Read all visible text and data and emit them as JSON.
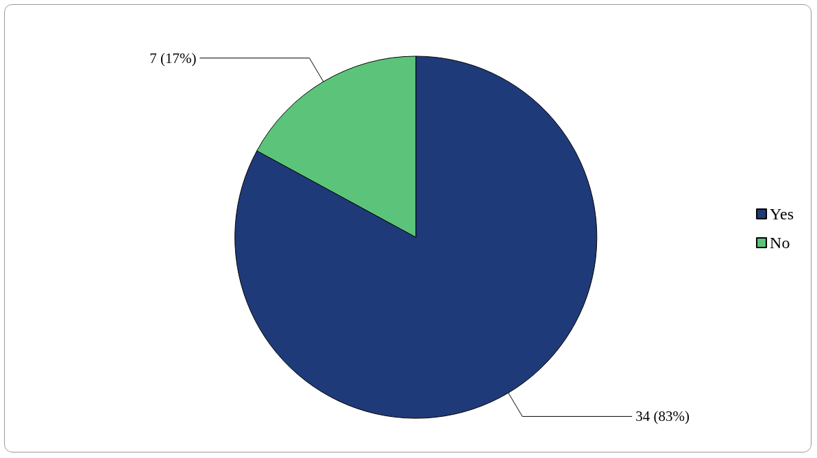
{
  "chart_data": {
    "type": "pie",
    "categories": [
      "Yes",
      "No"
    ],
    "values": [
      34,
      7
    ],
    "colors": [
      "#1f3a78",
      "#5cc47a"
    ],
    "value_labels": [
      "34 (83%)",
      "7 (17%)"
    ],
    "legend": "right"
  }
}
